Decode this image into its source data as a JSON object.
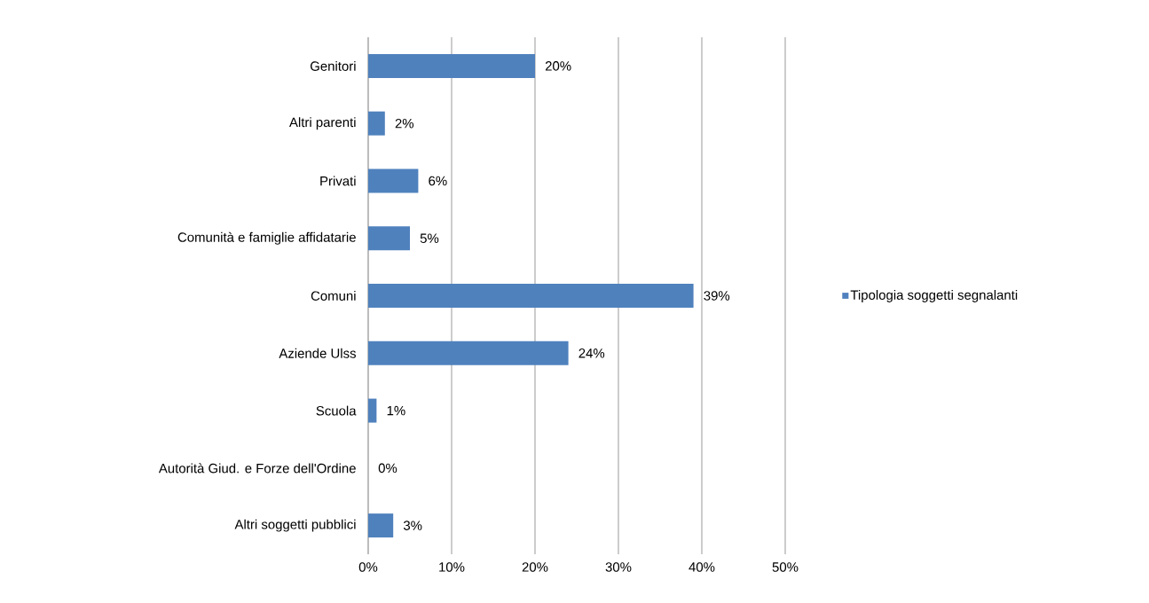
{
  "chart_data": {
    "type": "bar",
    "orientation": "horizontal",
    "categories": [
      "Genitori",
      "Altri parenti",
      "Privati",
      "Comunità e famiglie affidatarie",
      "Comuni",
      "Aziende Ulss",
      "Scuola",
      "Autorità Giud. e Forze dell'Ordine",
      "Altri soggetti pubblici"
    ],
    "series": [
      {
        "name": "Tipologia soggetti segnalanti",
        "color": "#4f81bd",
        "values": [
          20,
          2,
          6,
          5,
          39,
          24,
          1,
          0,
          3
        ],
        "value_labels": [
          "20%",
          "2%",
          "6%",
          "5%",
          "39%",
          "24%",
          "1%",
          "0%",
          "3%"
        ]
      }
    ],
    "xlim": [
      0,
      50
    ],
    "xticks": [
      {
        "value": 0,
        "label": "0%"
      },
      {
        "value": 10,
        "label": "10%"
      },
      {
        "value": 20,
        "label": "20%"
      },
      {
        "value": 30,
        "label": "30%"
      },
      {
        "value": 40,
        "label": "40%"
      },
      {
        "value": 50,
        "label": "50%"
      }
    ],
    "grid": "x",
    "legend": "right"
  }
}
